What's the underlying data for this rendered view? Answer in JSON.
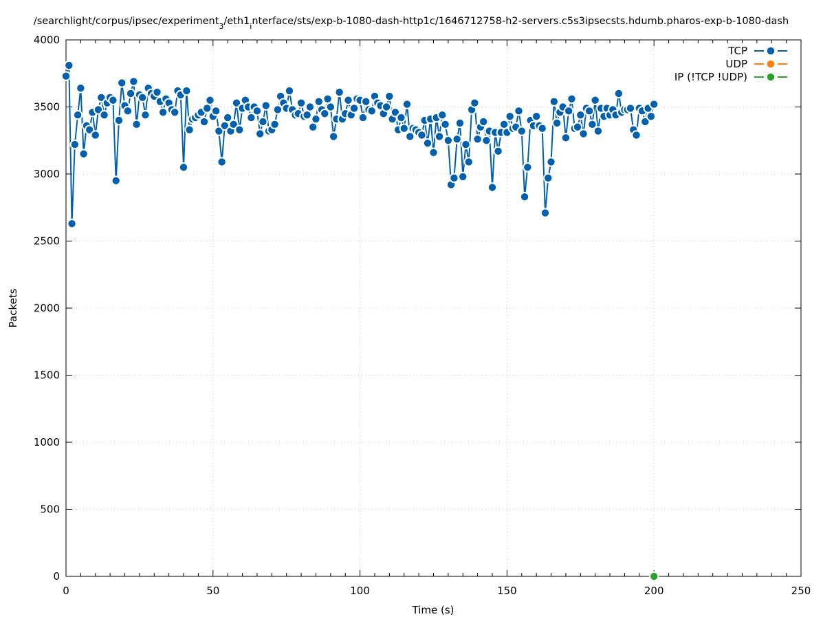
{
  "chart_data": {
    "type": "line",
    "title_parts": {
      "prefix": "/searchlight/corpus/ipsec/experiment",
      "sub1": "3",
      "mid": "/eth1",
      "sub2": "i",
      "suffix": "nterface/sts/exp-b-1080-dash-http1c/1646712758-h2-servers.c5s3ipsecsts.hdumb.pharos-exp-b-1080-dash"
    },
    "xlabel": "Time (s)",
    "ylabel": "Packets",
    "xlim": [
      0,
      250
    ],
    "ylim": [
      0,
      4000
    ],
    "xticks": [
      "0",
      "50",
      "100",
      "150",
      "200",
      "250"
    ],
    "yticks": [
      "0",
      "500",
      "1000",
      "1500",
      "2000",
      "2500",
      "3000",
      "3500",
      "4000"
    ],
    "grid": true,
    "legend_position": "top-right",
    "series": [
      {
        "name": "TCP",
        "color": "#0060ad",
        "x": [
          0,
          1,
          2,
          3,
          4,
          5,
          6,
          7,
          8,
          9,
          10,
          11,
          12,
          13,
          14,
          15,
          16,
          17,
          18,
          19,
          20,
          21,
          22,
          23,
          24,
          25,
          26,
          27,
          28,
          29,
          30,
          31,
          32,
          33,
          34,
          35,
          36,
          37,
          38,
          39,
          40,
          41,
          42,
          43,
          44,
          45,
          46,
          47,
          48,
          49,
          50,
          51,
          52,
          53,
          54,
          55,
          56,
          57,
          58,
          59,
          60,
          61,
          62,
          63,
          64,
          65,
          66,
          67,
          68,
          69,
          70,
          71,
          72,
          73,
          74,
          75,
          76,
          77,
          78,
          79,
          80,
          81,
          82,
          83,
          84,
          85,
          86,
          87,
          88,
          89,
          90,
          91,
          92,
          93,
          94,
          95,
          96,
          97,
          98,
          99,
          100,
          101,
          102,
          103,
          104,
          105,
          106,
          107,
          108,
          109,
          110,
          111,
          112,
          113,
          114,
          115,
          116,
          117,
          118,
          119,
          120,
          121,
          122,
          123,
          124,
          125,
          126,
          127,
          128,
          129,
          130,
          131,
          132,
          133,
          134,
          135,
          136,
          137,
          138,
          139,
          140,
          141,
          142,
          143,
          144,
          145,
          146,
          147,
          148,
          149,
          150,
          151,
          152,
          153,
          154,
          155,
          156,
          157,
          158,
          159,
          160,
          161,
          162,
          163,
          164,
          165,
          166,
          167,
          168,
          169,
          170,
          171,
          172,
          173,
          174,
          175,
          176,
          177,
          178,
          179,
          180,
          181,
          182,
          183,
          184,
          185,
          186,
          187,
          188,
          189,
          190,
          191,
          192,
          193,
          194,
          195,
          196,
          197,
          198,
          199,
          200
        ],
        "values": [
          3730,
          3810,
          2630,
          3220,
          3440,
          3640,
          3150,
          3360,
          3330,
          3460,
          3290,
          3480,
          3570,
          3440,
          3530,
          3570,
          3550,
          2950,
          3400,
          3680,
          3510,
          3470,
          3600,
          3690,
          3370,
          3590,
          3570,
          3440,
          3640,
          3600,
          3580,
          3610,
          3540,
          3460,
          3560,
          3530,
          3480,
          3460,
          3620,
          3590,
          3050,
          3620,
          3330,
          3410,
          3420,
          3440,
          3460,
          3390,
          3490,
          3550,
          3430,
          3470,
          3320,
          3090,
          3360,
          3420,
          3320,
          3370,
          3530,
          3330,
          3490,
          3550,
          3500,
          3420,
          3500,
          3470,
          3300,
          3390,
          3510,
          3320,
          3330,
          3370,
          3480,
          3580,
          3530,
          3490,
          3620,
          3480,
          3440,
          3450,
          3530,
          3430,
          3440,
          3500,
          3350,
          3410,
          3540,
          3480,
          3450,
          3560,
          3500,
          3280,
          3410,
          3610,
          3410,
          3450,
          3550,
          3440,
          3490,
          3560,
          3550,
          3420,
          3540,
          3480,
          3470,
          3580,
          3530,
          3510,
          3450,
          3500,
          3580,
          3410,
          3460,
          3330,
          3420,
          3340,
          3520,
          3280,
          3340,
          3330,
          3310,
          3290,
          3400,
          3230,
          3410,
          3160,
          3420,
          3280,
          3440,
          3370,
          3250,
          2920,
          2970,
          3260,
          3380,
          2980,
          3220,
          3090,
          3480,
          3530,
          3260,
          3350,
          3390,
          3250,
          3320,
          2900,
          3310,
          3170,
          3310,
          3370,
          3310,
          3430,
          3340,
          3350,
          3470,
          3320,
          2830,
          3050,
          3400,
          3360,
          3430,
          3360,
          3340,
          2710,
          2970,
          3090,
          3540,
          3380,
          3460,
          3500,
          3270,
          3470,
          3560,
          3340,
          3350,
          3440,
          3300,
          3490,
          3470,
          3370,
          3550,
          3320,
          3490,
          3430,
          3490,
          3440,
          3480,
          3440,
          3600,
          3460,
          3480,
          3480,
          3490,
          3330,
          3290,
          3490,
          3470,
          3390,
          3490,
          3430,
          3520
        ]
      },
      {
        "name": "UDP",
        "color": "#ff7f0e",
        "x": [],
        "values": []
      },
      {
        "name": "IP (!TCP  !UDP)",
        "color": "#2ca02c",
        "x": [
          200
        ],
        "values": [
          0
        ]
      }
    ]
  }
}
